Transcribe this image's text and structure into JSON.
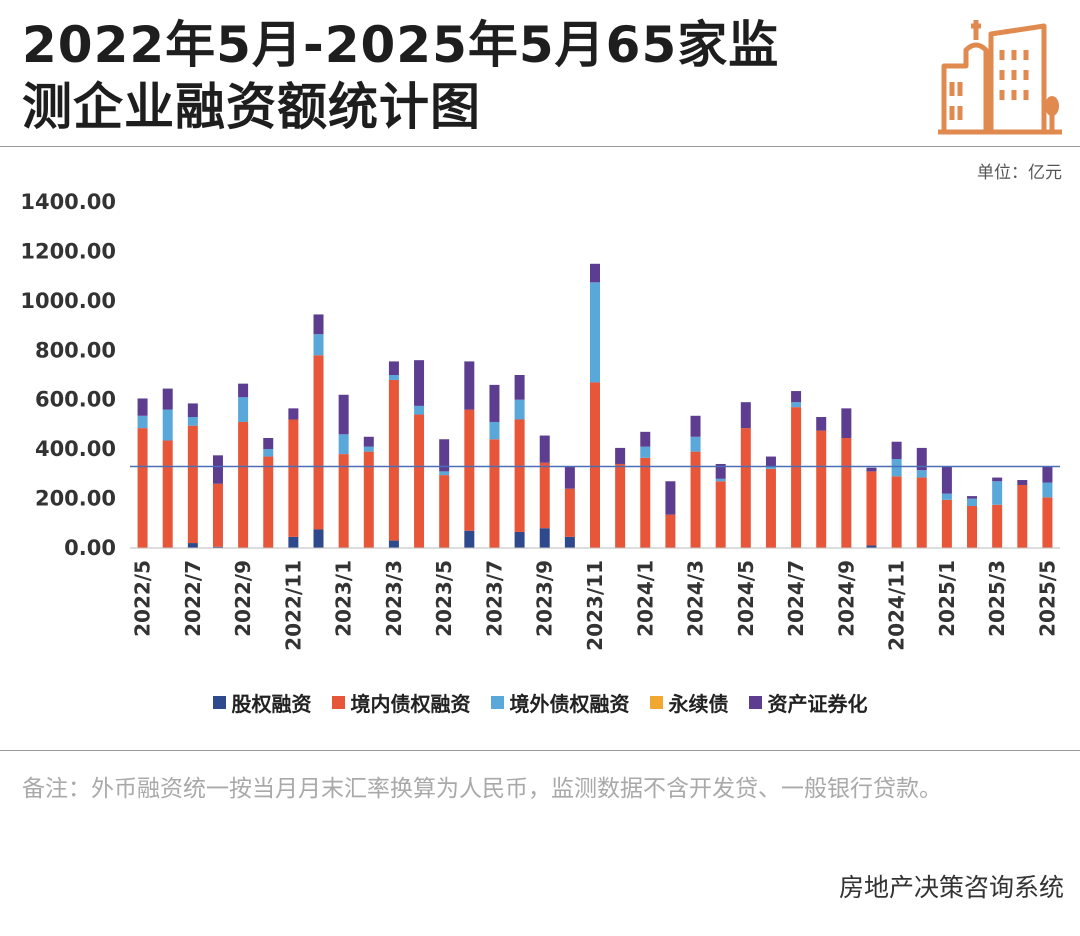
{
  "title": {
    "line1": "2022年5月-2025年5月65家监",
    "line2": "测企业融资额统计图"
  },
  "unit": "单位：亿元",
  "note": "备注：外币融资统一按当月月末汇率换算为人民币，监测数据不含开发贷、一般银行贷款。",
  "source": "房地产决策咨询系统",
  "logo_icon": "city-buildings-icon",
  "colors": {
    "equity": "#2e4a8c",
    "domestic_bond": "#e8563a",
    "overseas_bond": "#5aa7d9",
    "perpetual": "#f0a830",
    "abs": "#5c3d8f",
    "reference_line": "#4a6fb5",
    "logo": "#e08a50"
  },
  "legend": [
    {
      "label": "股权融资",
      "color": "#2e4a8c"
    },
    {
      "label": "境内债权融资",
      "color": "#e8563a"
    },
    {
      "label": "境外债权融资",
      "color": "#5aa7d9"
    },
    {
      "label": "永续债",
      "color": "#f0a830"
    },
    {
      "label": "资产证券化",
      "color": "#5c3d8f"
    }
  ],
  "chart_data": {
    "type": "bar",
    "stacked": true,
    "ylim": [
      0,
      1400
    ],
    "y_ticks": [
      "0.00",
      "200.00",
      "400.00",
      "600.00",
      "800.00",
      "1000.00",
      "1200.00",
      "1400.00"
    ],
    "reference_line": 330,
    "categories": [
      "2022/5",
      "2022/6",
      "2022/7",
      "2022/8",
      "2022/9",
      "2022/10",
      "2022/11",
      "2022/12",
      "2023/1",
      "2023/2",
      "2023/3",
      "2023/4",
      "2023/5",
      "2023/6",
      "2023/7",
      "2023/8",
      "2023/9",
      "2023/10",
      "2023/11",
      "2023/12",
      "2024/1",
      "2024/2",
      "2024/3",
      "2024/4",
      "2024/5",
      "2024/6",
      "2024/7",
      "2024/8",
      "2024/9",
      "2024/10",
      "2024/11",
      "2024/12",
      "2025/1",
      "2025/2",
      "2025/3",
      "2025/4",
      "2025/5"
    ],
    "x_tick_labels": [
      "2022/5",
      "2022/7",
      "2022/9",
      "2022/11",
      "2023/1",
      "2023/3",
      "2023/5",
      "2023/7",
      "2023/9",
      "2023/11",
      "2024/1",
      "2024/3",
      "2024/5",
      "2024/7",
      "2024/9",
      "2024/11",
      "2025/1",
      "2025/3",
      "2025/5"
    ],
    "series": [
      {
        "name": "股权融资",
        "values": [
          0,
          0,
          20,
          5,
          0,
          0,
          45,
          75,
          0,
          0,
          30,
          0,
          0,
          70,
          0,
          65,
          80,
          45,
          0,
          0,
          0,
          0,
          0,
          0,
          0,
          0,
          0,
          0,
          0,
          10,
          0,
          0,
          0,
          0,
          0,
          0,
          0
        ]
      },
      {
        "name": "境内债权融资",
        "values": [
          485,
          435,
          475,
          255,
          510,
          370,
          475,
          705,
          380,
          390,
          650,
          540,
          295,
          490,
          440,
          455,
          265,
          195,
          670,
          340,
          365,
          135,
          390,
          270,
          485,
          320,
          570,
          475,
          445,
          300,
          290,
          285,
          195,
          170,
          175,
          255,
          205
        ]
      },
      {
        "name": "境外债权融资",
        "values": [
          50,
          125,
          35,
          0,
          100,
          30,
          0,
          85,
          80,
          20,
          20,
          35,
          15,
          0,
          70,
          80,
          0,
          0,
          405,
          0,
          45,
          0,
          60,
          10,
          0,
          10,
          20,
          0,
          0,
          0,
          70,
          30,
          25,
          30,
          95,
          0,
          60
        ]
      },
      {
        "name": "永续债",
        "values": [
          0,
          0,
          0,
          0,
          0,
          0,
          0,
          0,
          0,
          0,
          0,
          0,
          0,
          0,
          0,
          0,
          0,
          0,
          0,
          0,
          0,
          0,
          0,
          0,
          0,
          0,
          0,
          0,
          0,
          0,
          0,
          0,
          0,
          0,
          0,
          0,
          0
        ]
      },
      {
        "name": "资产证券化",
        "values": [
          70,
          85,
          55,
          115,
          55,
          45,
          45,
          80,
          160,
          40,
          55,
          185,
          130,
          195,
          150,
          100,
          110,
          90,
          75,
          65,
          60,
          135,
          85,
          60,
          105,
          40,
          45,
          55,
          120,
          15,
          70,
          90,
          110,
          10,
          15,
          20,
          65
        ]
      }
    ]
  }
}
